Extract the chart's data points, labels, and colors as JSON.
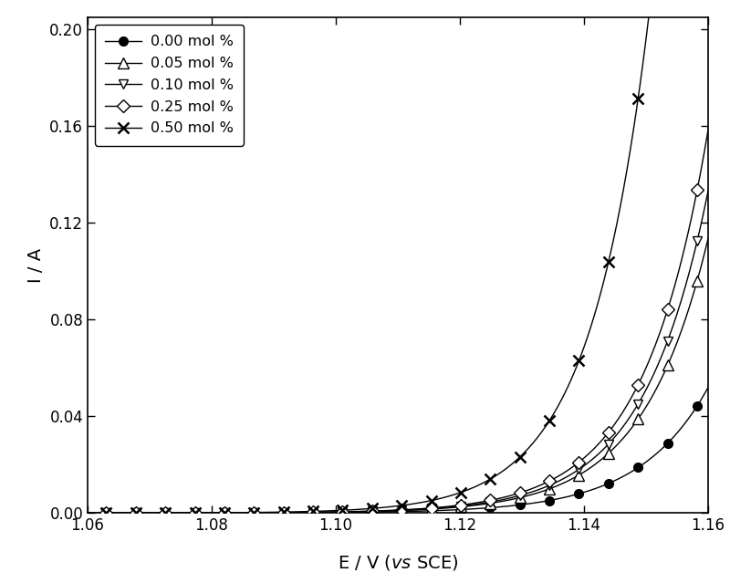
{
  "xlabel_text": "E / V (",
  "xlabel_vs": "vs",
  "xlabel_end": " SCE)",
  "ylabel": "I / A",
  "xlim": [
    1.06,
    1.16
  ],
  "ylim": [
    0.0,
    0.205
  ],
  "xticks": [
    1.06,
    1.08,
    1.1,
    1.12,
    1.14,
    1.16
  ],
  "yticks": [
    0.0,
    0.04,
    0.08,
    0.12,
    0.16,
    0.2
  ],
  "ytick_labels": [
    "0.00",
    "0.04",
    "0.08",
    "0.12",
    "0.16",
    "0.20"
  ],
  "xtick_labels": [
    "1.06",
    "1.08",
    "1.10",
    "1.12",
    "1.14",
    "1.16"
  ],
  "series": [
    {
      "label": "0.00 mol %",
      "marker": "o",
      "fillstyle": "full",
      "b": 95,
      "Eref": 1.063,
      "scale": 1.2e-05,
      "markersize": 7
    },
    {
      "label": "0.05 mol %",
      "marker": "^",
      "fillstyle": "none",
      "b": 100,
      "Eref": 1.058,
      "scale": 9e-06,
      "markersize": 8
    },
    {
      "label": "0.10 mol %",
      "marker": "v",
      "fillstyle": "none",
      "b": 103,
      "Eref": 1.056,
      "scale": 8.5e-06,
      "markersize": 7
    },
    {
      "label": "0.25 mol %",
      "marker": "D",
      "fillstyle": "none",
      "b": 104,
      "Eref": 1.055,
      "scale": 8.2e-06,
      "markersize": 7
    },
    {
      "label": "0.50 mol %",
      "marker": "$\\mathbf{\\leftarrow}$",
      "fillstyle": "none",
      "b": 110,
      "Eref": 1.049,
      "scale": 6.5e-06,
      "markersize": 7
    }
  ],
  "figure_width": 8.0,
  "figure_height": 6.39,
  "dpi": 100,
  "line_color": "#000000",
  "background_color": "#ffffff",
  "n_markers": 25,
  "linewidth": 1.0
}
